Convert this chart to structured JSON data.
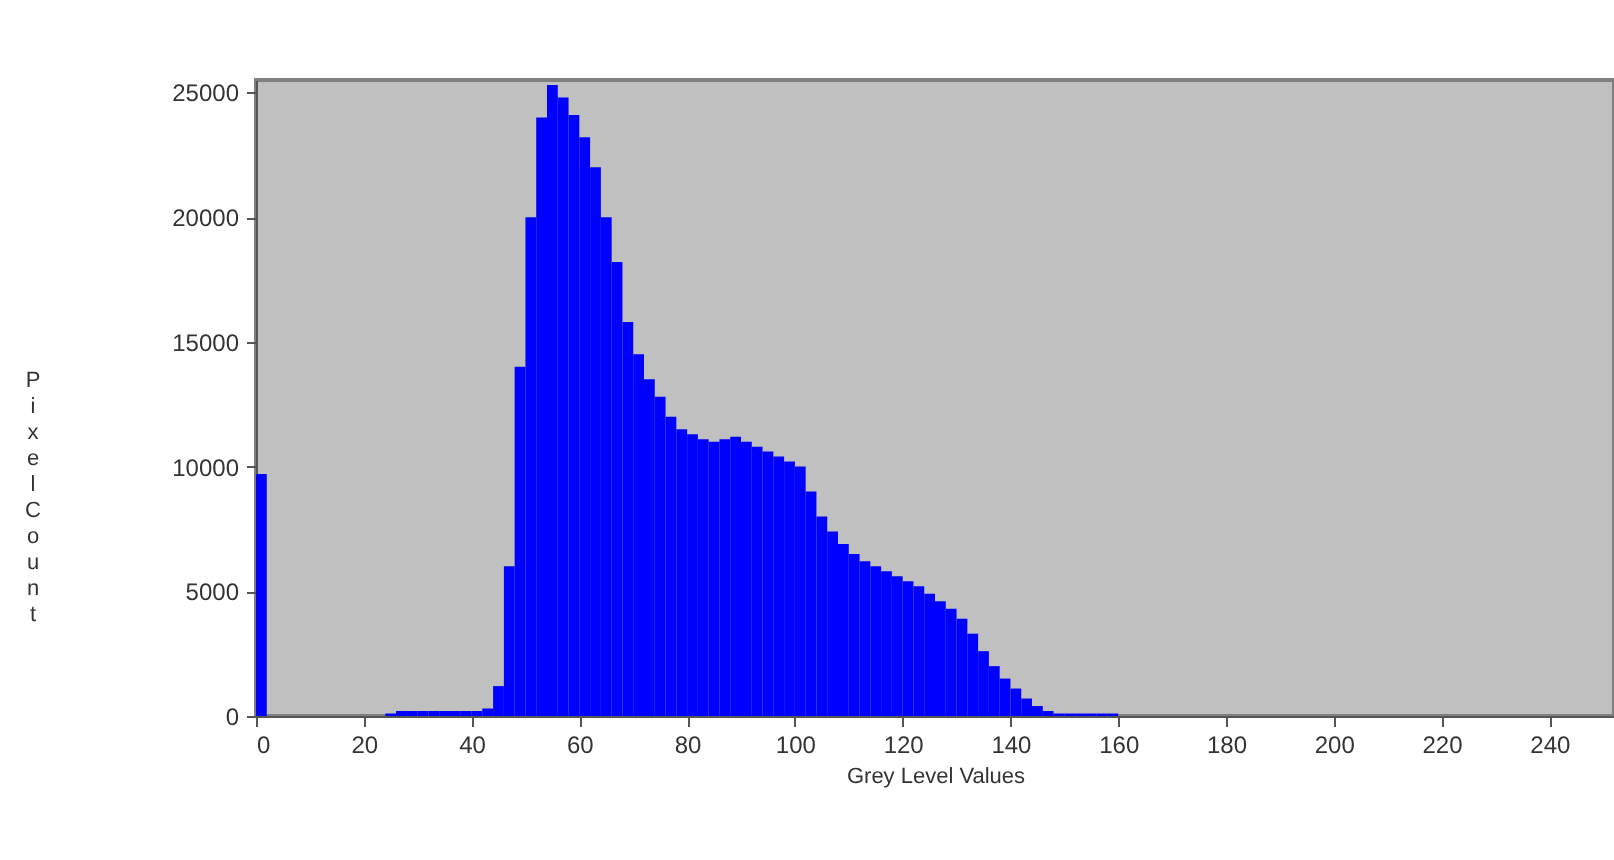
{
  "chart_data": {
    "type": "histogram",
    "xlabel": "Grey Level Values",
    "ylabel": "Pixel Count",
    "color": "#0000ff",
    "bins": [
      0,
      2,
      4,
      6,
      8,
      10,
      12,
      14,
      16,
      18,
      20,
      22,
      24,
      26,
      28,
      30,
      32,
      34,
      36,
      38,
      40,
      42,
      44,
      46,
      48,
      50,
      52,
      54,
      56,
      58,
      60,
      62,
      64,
      66,
      68,
      70,
      72,
      74,
      76,
      78,
      80,
      82,
      84,
      86,
      88,
      90,
      92,
      94,
      96,
      98,
      100,
      102,
      104,
      106,
      108,
      110,
      112,
      114,
      116,
      118,
      120,
      122,
      124,
      126,
      128,
      130,
      132,
      134,
      136,
      138,
      140,
      142,
      144,
      146,
      148,
      150,
      152,
      154,
      156,
      158,
      160
    ],
    "values": [
      9700,
      0,
      0,
      0,
      0,
      0,
      0,
      0,
      0,
      0,
      0,
      0,
      100,
      200,
      200,
      200,
      200,
      200,
      200,
      200,
      200,
      300,
      1200,
      6000,
      14000,
      20000,
      24000,
      25300,
      24800,
      24100,
      23200,
      22000,
      20000,
      18200,
      15800,
      14500,
      13500,
      12800,
      12000,
      11500,
      11300,
      11100,
      11000,
      11100,
      11200,
      11000,
      10800,
      10600,
      10400,
      10200,
      10000,
      9000,
      8000,
      7400,
      6900,
      6500,
      6200,
      6000,
      5800,
      5600,
      5400,
      5200,
      4900,
      4600,
      4300,
      3900,
      3300,
      2600,
      2000,
      1500,
      1100,
      700,
      400,
      200,
      100,
      100,
      100,
      100,
      100,
      100
    ],
    "xlim": [
      0,
      252
    ],
    "ylim": [
      0,
      25500
    ],
    "xticks": [
      0,
      20,
      40,
      60,
      80,
      100,
      120,
      140,
      160,
      180,
      200,
      220,
      240
    ],
    "yticks": [
      0,
      5000,
      10000,
      15000,
      20000,
      25000
    ],
    "grid": false
  }
}
